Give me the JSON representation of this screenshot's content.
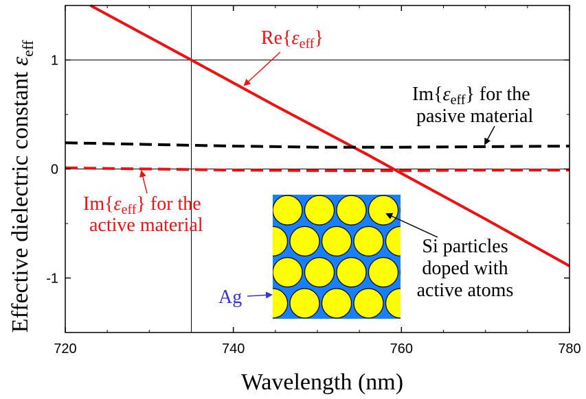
{
  "chart_data": {
    "type": "line",
    "xlabel": "Wavelength (nm)",
    "ylabel_text": "Effective dielectric constant ",
    "ylabel_symbol": "ε",
    "ylabel_sub": "eff",
    "xlim": [
      720,
      780
    ],
    "ylim": [
      -1.5,
      1.5
    ],
    "x_ticks": [
      720,
      740,
      760,
      780
    ],
    "x_tick_labels": [
      "720",
      "740",
      "760",
      "780"
    ],
    "y_ticks": [
      -1,
      0,
      1
    ],
    "y_tick_labels": [
      "-1",
      "0",
      "1"
    ],
    "grid": "lines at x=735 and y=-1, 0, 1",
    "reference_lines": {
      "x": [
        735
      ],
      "y": [
        1,
        0
      ]
    },
    "series": [
      {
        "label": "Re",
        "color": "#ee1111",
        "style": "solid",
        "x": [
          723,
          735,
          745,
          756,
          760,
          770,
          780
        ],
        "y": [
          1.5,
          1.0,
          0.58,
          0.13,
          -0.04,
          -0.46,
          -0.89
        ]
      },
      {
        "label": "Im passive",
        "color": "#000000",
        "style": "dashed",
        "x": [
          720,
          730,
          740,
          750,
          760,
          770,
          780
        ],
        "y": [
          0.24,
          0.225,
          0.21,
          0.2,
          0.2,
          0.205,
          0.21
        ]
      },
      {
        "label": "Im active",
        "color": "#ee1111",
        "style": "dashed",
        "x": [
          720,
          730,
          740,
          750,
          760,
          770,
          780
        ],
        "y": [
          0.01,
          0.0,
          -0.01,
          -0.015,
          -0.015,
          -0.01,
          -0.01
        ]
      }
    ],
    "annotations": {
      "re": {
        "pre": "Re{",
        "sym": "ε",
        "sub": "eff",
        "post": "}"
      },
      "im_passive": {
        "pre": "Im{",
        "sym": "ε",
        "sub": "eff",
        "post": "} for the",
        "line2": "pasive material"
      },
      "im_active": {
        "pre": "Im{",
        "sym": "ε",
        "sub": "eff",
        "post": "} for the",
        "line2": "active material"
      },
      "si": {
        "line1": "Si particles",
        "line2": "doped with",
        "line3": "active atoms"
      },
      "ag": "Ag"
    },
    "inset": {
      "background_color": "#1a7fff",
      "particle_color": "#ffff00",
      "rows": 4,
      "cols": 4
    }
  }
}
